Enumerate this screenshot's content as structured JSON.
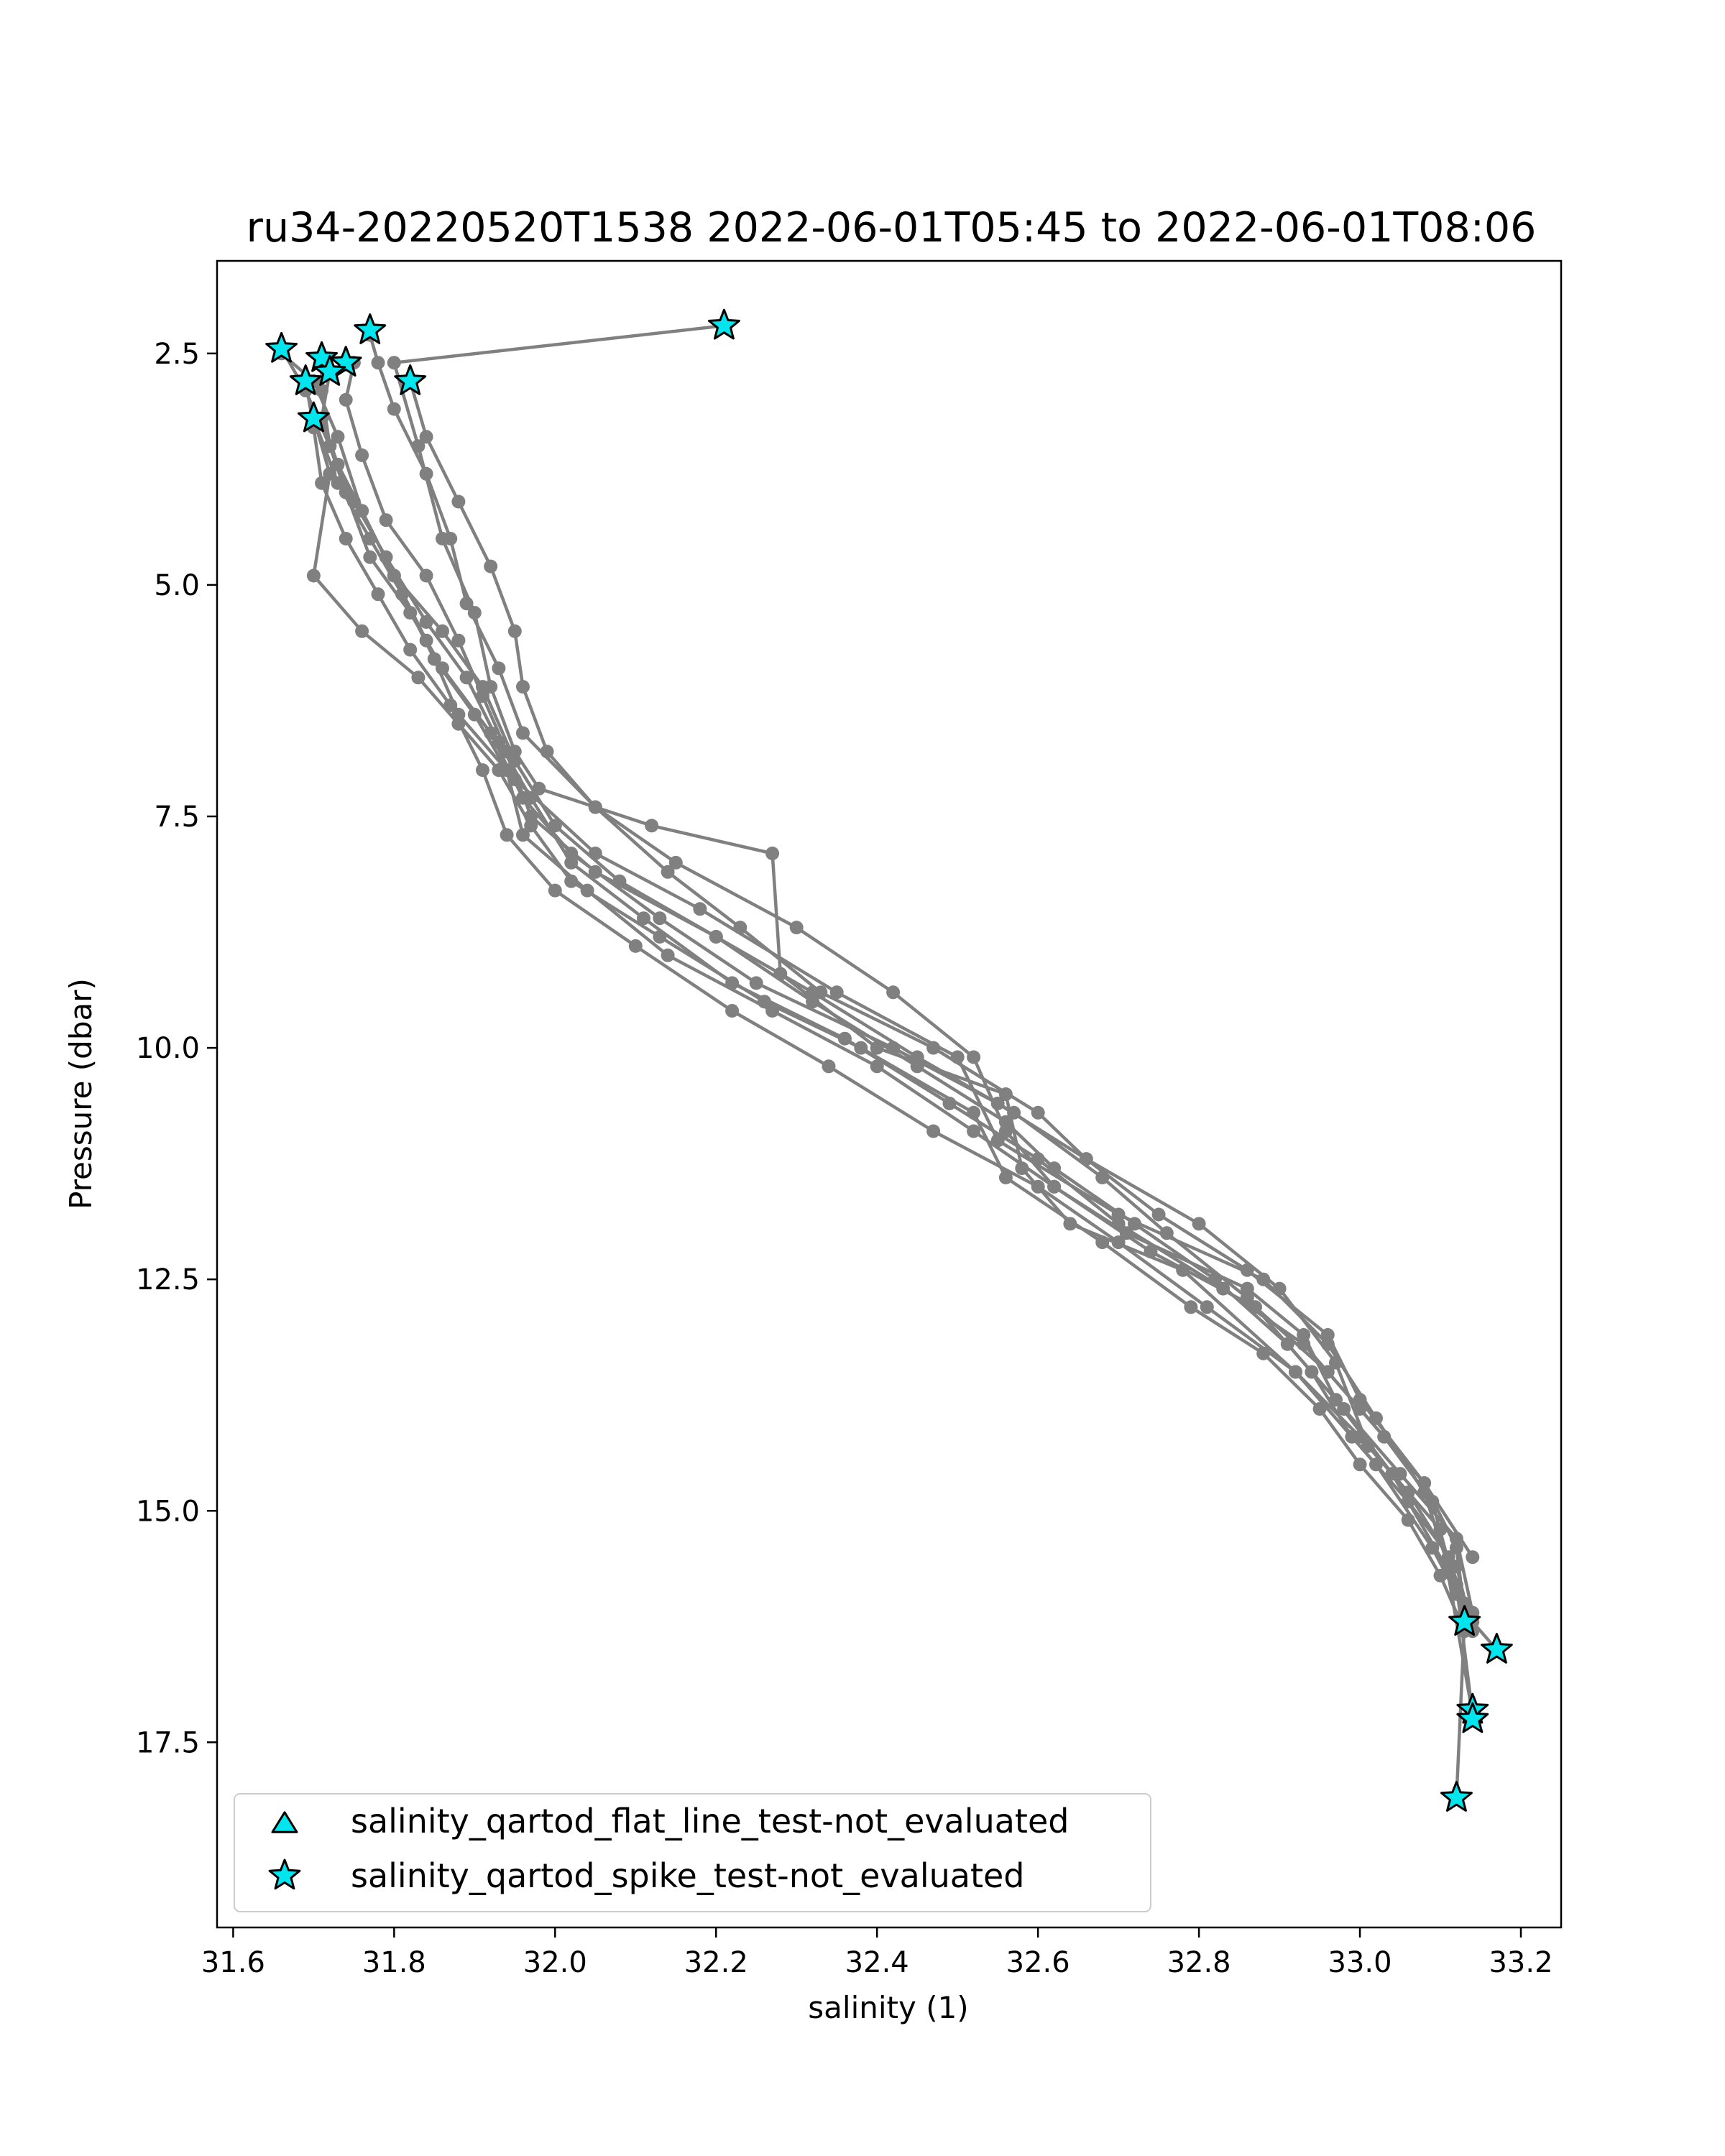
{
  "chart_data": {
    "type": "scatter",
    "title": "ru34-20220520T1538 2022-06-01T05:45 to 2022-06-01T08:06",
    "xlabel": "salinity (1)",
    "ylabel": "Pressure (dbar)",
    "xlim": [
      31.58,
      33.25
    ],
    "ylim": [
      19.5,
      1.5
    ],
    "y_inverted": true,
    "grid": false,
    "legend_position": "lower-left",
    "xticks": [
      31.6,
      31.8,
      32.0,
      32.2,
      32.4,
      32.6,
      32.8,
      33.0,
      33.2
    ],
    "xtick_labels": [
      "31.6",
      "31.8",
      "32.0",
      "32.2",
      "32.4",
      "32.6",
      "32.8",
      "33.0",
      "33.2"
    ],
    "yticks": [
      2.5,
      5.0,
      7.5,
      10.0,
      12.5,
      15.0,
      17.5
    ],
    "ytick_labels": [
      "2.5",
      "5.0",
      "7.5",
      "10.0",
      "12.5",
      "15.0",
      "17.5"
    ],
    "line_color": "#808080",
    "marker_color": "#00e5ee",
    "marker_edge_color": "#000000",
    "series": [
      {
        "style": "line",
        "x": [
          32.21,
          31.8,
          31.83,
          31.86,
          31.9,
          31.92,
          31.95,
          31.98,
          32.12,
          32.27,
          32.28,
          32.4,
          32.56,
          32.58,
          32.64,
          32.78,
          32.92,
          33.02,
          33.09,
          33.12,
          33.14,
          33.17
        ],
        "y": [
          2.2,
          2.6,
          3.5,
          4.5,
          5.3,
          6.1,
          6.8,
          7.2,
          7.6,
          7.9,
          9.2,
          10.0,
          10.5,
          11.3,
          11.9,
          12.4,
          13.5,
          14.5,
          15.4,
          15.9,
          16.2,
          16.5
        ]
      },
      {
        "style": "line",
        "x": [
          31.66,
          31.7,
          31.73,
          31.76,
          31.8,
          31.84,
          31.88,
          31.95,
          32.05,
          32.18,
          32.35,
          32.5,
          32.55,
          32.7,
          32.88,
          32.96,
          33.02,
          33.08,
          33.11,
          33.13
        ],
        "y": [
          2.5,
          2.8,
          3.4,
          4.2,
          4.9,
          5.6,
          6.4,
          7.1,
          7.9,
          8.5,
          9.4,
          10.1,
          11.0,
          11.8,
          12.5,
          13.2,
          14.0,
          14.8,
          15.6,
          16.2
        ]
      },
      {
        "style": "line",
        "x": [
          31.71,
          31.71,
          31.72,
          31.74,
          31.77,
          31.82,
          31.86,
          31.92,
          31.96,
          32.02,
          32.13,
          32.25,
          32.42,
          32.55,
          32.66,
          32.8,
          32.9,
          32.97,
          33.01,
          33.1,
          33.14
        ],
        "y": [
          2.55,
          2.9,
          3.5,
          4.0,
          4.7,
          5.3,
          5.9,
          6.6,
          7.3,
          7.9,
          8.6,
          9.3,
          10.0,
          10.6,
          11.2,
          11.9,
          12.6,
          13.4,
          14.3,
          15.2,
          17.2
        ]
      },
      {
        "style": "line",
        "x": [
          31.72,
          31.71,
          31.73,
          31.76,
          31.8,
          31.86,
          31.91,
          31.95,
          32.0,
          32.08,
          32.2,
          32.32,
          32.45,
          32.57,
          32.68,
          32.76,
          32.86,
          32.94,
          32.99,
          33.06,
          33.12,
          33.14
        ],
        "y": [
          2.7,
          3.2,
          3.7,
          4.2,
          4.9,
          5.5,
          6.1,
          6.9,
          7.6,
          8.2,
          8.8,
          9.4,
          10.1,
          10.7,
          11.4,
          12.0,
          12.7,
          13.5,
          14.2,
          14.9,
          15.6,
          16.3
        ]
      },
      {
        "style": "line",
        "x": [
          31.69,
          31.7,
          31.71,
          31.74,
          31.78,
          31.82,
          31.87,
          31.91,
          31.94,
          32.0,
          32.1,
          32.22,
          32.34,
          32.47,
          32.6,
          32.7,
          32.81,
          32.92,
          33.0,
          33.06,
          33.11,
          33.13
        ],
        "y": [
          2.8,
          3.3,
          3.9,
          4.5,
          5.1,
          5.7,
          6.3,
          7.0,
          7.7,
          8.3,
          8.9,
          9.6,
          10.2,
          10.9,
          11.5,
          12.1,
          12.8,
          13.5,
          14.2,
          14.8,
          15.5,
          16.0
        ]
      },
      {
        "style": "line",
        "x": [
          31.7,
          31.72,
          31.7,
          31.76,
          31.83,
          31.88,
          31.93,
          31.97,
          32.02,
          32.13,
          32.26,
          32.38,
          32.52,
          32.56,
          32.68,
          32.79,
          32.88,
          32.95,
          33.0,
          33.06,
          33.1,
          33.13
        ],
        "y": [
          3.2,
          3.8,
          4.9,
          5.5,
          6.0,
          6.5,
          7.0,
          7.6,
          8.2,
          8.8,
          9.5,
          10.0,
          10.7,
          11.4,
          12.1,
          12.8,
          13.3,
          13.9,
          14.5,
          15.1,
          15.7,
          16.3
        ]
      },
      {
        "style": "line",
        "x": [
          31.77,
          31.78,
          31.8,
          31.84,
          31.87,
          31.89,
          31.93,
          31.96,
          32.05,
          32.15,
          32.3,
          32.42,
          32.52,
          32.56,
          32.62,
          32.71,
          32.86,
          32.93,
          32.97,
          33.04,
          33.12,
          33.14
        ],
        "y": [
          2.3,
          2.6,
          3.1,
          3.8,
          4.5,
          5.2,
          5.9,
          6.6,
          7.4,
          8.0,
          8.7,
          9.4,
          10.1,
          10.9,
          11.5,
          12.0,
          12.6,
          13.1,
          13.8,
          14.6,
          15.8,
          17.2
        ]
      },
      {
        "style": "line",
        "x": [
          31.75,
          31.74,
          31.76,
          31.79,
          31.84,
          31.88,
          31.91,
          31.94,
          31.97,
          32.05,
          32.2,
          32.32,
          32.45,
          32.56,
          32.62,
          32.72,
          32.82,
          32.91,
          32.98,
          33.05,
          33.12,
          33.14
        ],
        "y": [
          2.6,
          3.0,
          3.6,
          4.3,
          4.9,
          5.6,
          6.2,
          6.8,
          7.5,
          8.1,
          8.8,
          9.5,
          10.2,
          10.8,
          11.3,
          11.9,
          12.5,
          13.2,
          13.9,
          14.6,
          15.3,
          16.1
        ]
      },
      {
        "style": "line",
        "x": [
          31.82,
          31.84,
          31.88,
          31.92,
          31.95,
          31.96,
          31.99,
          32.05,
          32.14,
          32.23,
          32.33,
          32.47,
          32.6,
          32.66,
          32.75,
          32.86,
          32.96,
          33.0,
          33.08,
          33.14
        ],
        "y": [
          2.8,
          3.4,
          4.1,
          4.8,
          5.5,
          6.1,
          6.8,
          7.4,
          8.1,
          8.7,
          9.4,
          10.0,
          10.7,
          11.2,
          11.8,
          12.4,
          13.1,
          13.8,
          14.7,
          15.5
        ]
      },
      {
        "style": "line",
        "x": [
          31.66,
          31.69,
          31.72,
          31.75,
          31.79,
          31.84,
          31.89,
          31.93,
          31.97,
          32.02,
          32.11,
          32.22,
          32.36,
          32.49,
          32.6,
          32.7,
          32.83,
          32.93,
          33.0,
          33.08,
          33.12,
          33.13
        ],
        "y": [
          2.45,
          2.9,
          3.5,
          4.1,
          4.7,
          5.4,
          6.0,
          6.7,
          7.3,
          8.0,
          8.6,
          9.3,
          9.9,
          10.6,
          11.2,
          11.9,
          12.6,
          13.2,
          13.9,
          14.7,
          15.4,
          16.1
        ]
      },
      {
        "style": "line",
        "x": [
          31.7,
          31.73,
          31.77,
          31.81,
          31.85,
          31.9,
          31.94,
          31.96,
          32.04,
          32.14,
          32.27,
          32.4,
          32.52,
          32.62,
          32.74,
          32.87,
          32.96,
          33.03,
          33.09,
          33.13,
          33.12
        ],
        "y": [
          3.2,
          3.9,
          4.5,
          5.1,
          5.8,
          6.4,
          7.0,
          7.7,
          8.3,
          9.0,
          9.6,
          10.2,
          10.9,
          11.5,
          12.2,
          12.8,
          13.5,
          14.2,
          14.9,
          16.2,
          18.1
        ]
      },
      {
        "name": "salinity_qartod_flat_line_test-not_evaluated",
        "style": "markers",
        "marker": "triangle",
        "x": [],
        "y": []
      },
      {
        "name": "salinity_qartod_spike_test-not_evaluated",
        "style": "markers",
        "marker": "star",
        "x": [
          32.21,
          31.77,
          31.66,
          31.71,
          31.74,
          31.72,
          31.69,
          31.82,
          31.7,
          33.13,
          33.17,
          33.14,
          33.14,
          33.12
        ],
        "y": [
          2.2,
          2.25,
          2.45,
          2.55,
          2.6,
          2.7,
          2.8,
          2.8,
          3.2,
          16.2,
          16.5,
          17.15,
          17.25,
          18.1
        ]
      }
    ]
  }
}
